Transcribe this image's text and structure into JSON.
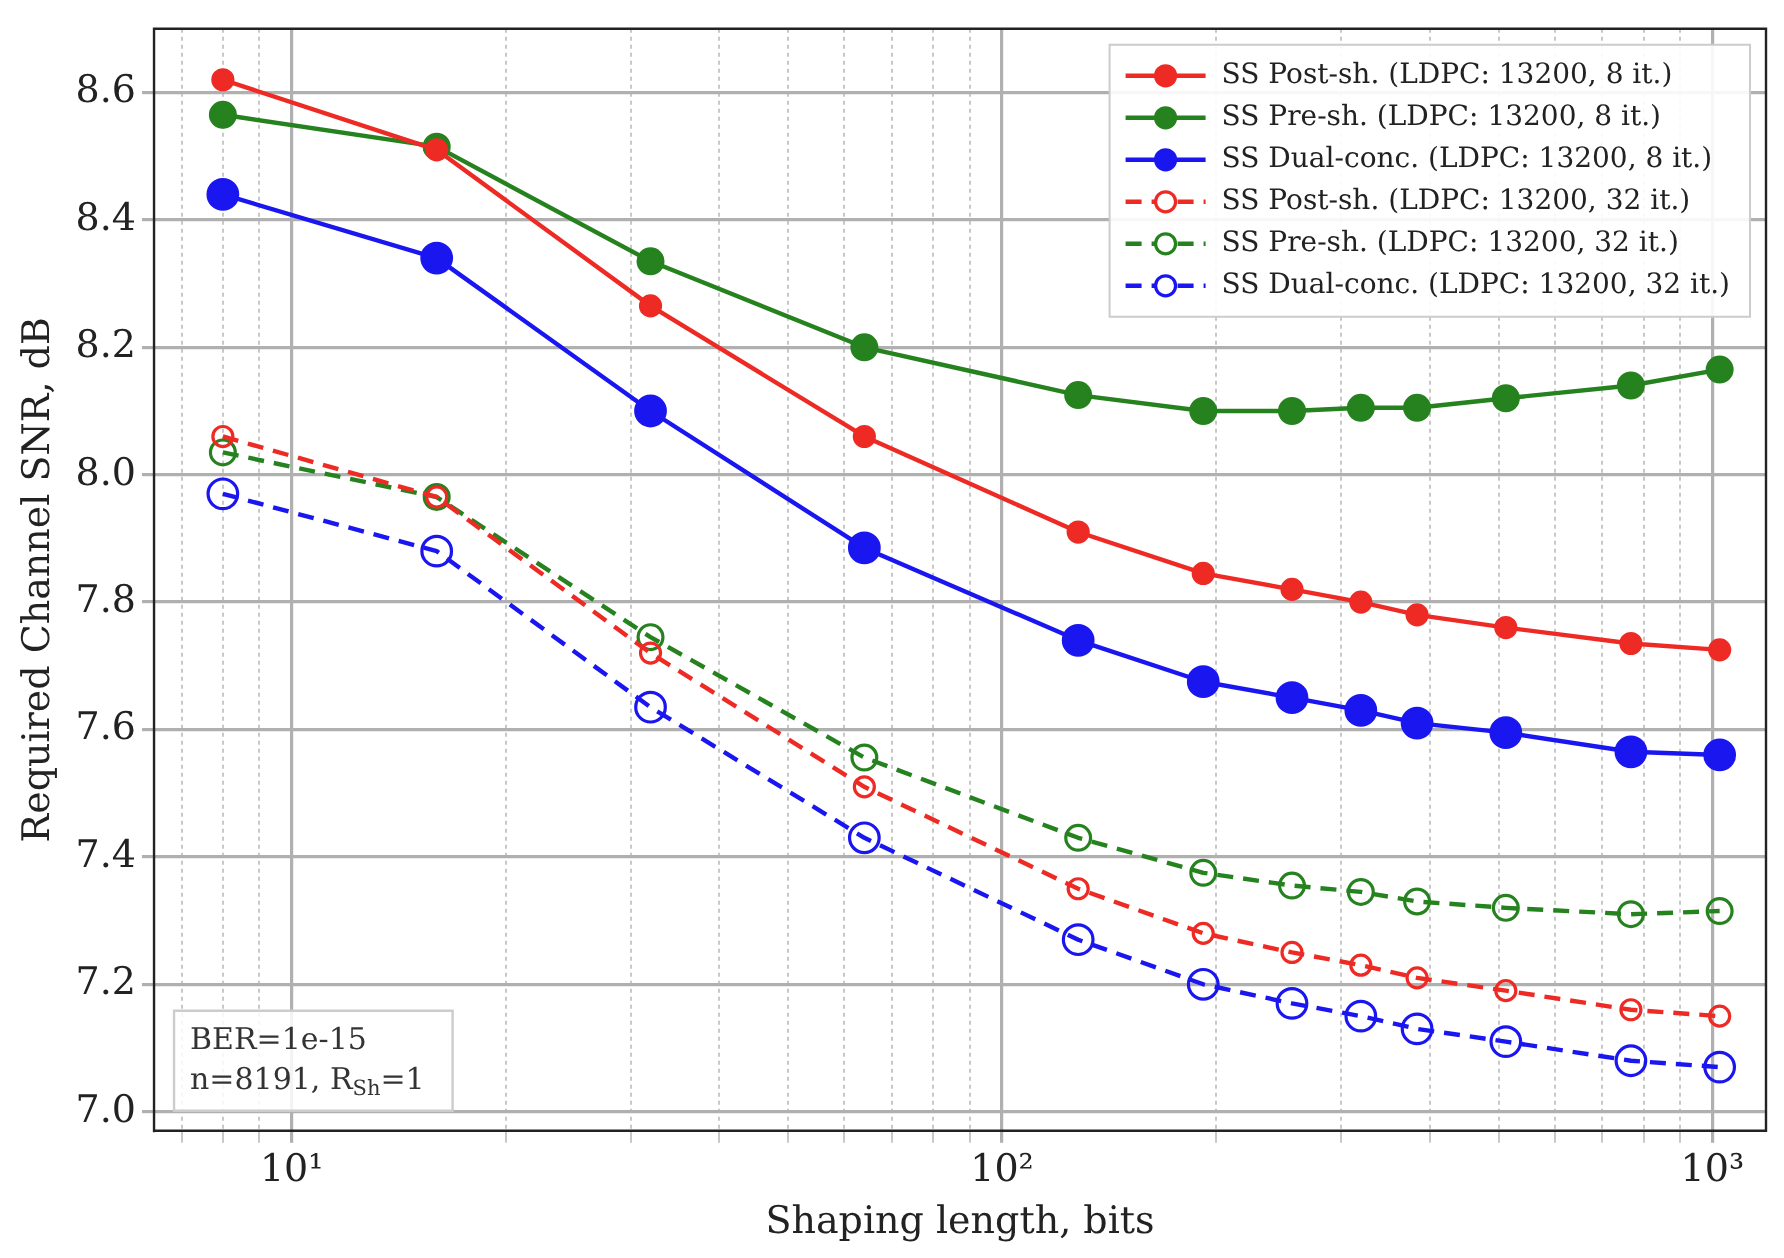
{
  "chart_data": {
    "type": "line",
    "xlabel": "Shaping length, bits",
    "ylabel": "Required Channel SNR, dB",
    "log": "x",
    "grid": true,
    "legend": "top right",
    "marker": "circle",
    "x": [
      8,
      16,
      32,
      64,
      128,
      192,
      256,
      320,
      384,
      512,
      768,
      1024
    ],
    "xlim": [
      6.4,
      1190
    ],
    "ylim": [
      6.97,
      8.7
    ],
    "xticks": [
      {
        "value": 7,
        "label": null
      },
      {
        "value": 8,
        "label": null
      },
      {
        "value": 9,
        "label": null
      },
      {
        "value": 10,
        "label": "10¹"
      },
      {
        "value": 20,
        "label": null
      },
      {
        "value": 30,
        "label": null
      },
      {
        "value": 40,
        "label": null
      },
      {
        "value": 50,
        "label": null
      },
      {
        "value": 60,
        "label": null
      },
      {
        "value": 70,
        "label": null
      },
      {
        "value": 80,
        "label": null
      },
      {
        "value": 90,
        "label": null
      },
      {
        "value": 100,
        "label": "10²"
      },
      {
        "value": 200,
        "label": null
      },
      {
        "value": 300,
        "label": null
      },
      {
        "value": 400,
        "label": null
      },
      {
        "value": 500,
        "label": null
      },
      {
        "value": 600,
        "label": null
      },
      {
        "value": 700,
        "label": null
      },
      {
        "value": 800,
        "label": null
      },
      {
        "value": 900,
        "label": null
      },
      {
        "value": 1000,
        "label": "10³"
      }
    ],
    "yticks": [
      {
        "value": 7,
        "label": "7.0"
      },
      7.2,
      7.4,
      7.6,
      7.8,
      {
        "value": 8,
        "label": "8.0"
      },
      8.2,
      8.4,
      8.6
    ],
    "annotations": [
      "BER=1e-15",
      "n=8191, R$_{Sh}$=1"
    ],
    "series": [
      {
        "name": "SS Post-sh. (LDPC: 13200, 8 it.)",
        "color": "#ee2a24",
        "line_style": "solid",
        "values": [
          8.62,
          8.51,
          8.265,
          8.06,
          7.91,
          7.845,
          7.82,
          7.8,
          7.78,
          7.76,
          7.735,
          7.725
        ]
      },
      {
        "name": "SS Pre-sh. (LDPC: 13200, 8 it.)",
        "color": "#25821e",
        "line_style": "solid",
        "values": [
          8.565,
          8.515,
          8.335,
          8.2,
          8.125,
          8.1,
          8.1,
          8.105,
          8.105,
          8.12,
          8.14,
          8.165
        ]
      },
      {
        "name": "SS Dual-conc. (LDPC: 13200, 8 it.)",
        "color": "#1a16f0",
        "line_style": "solid",
        "values": [
          8.44,
          8.34,
          8.1,
          7.885,
          7.74,
          7.675,
          7.65,
          7.63,
          7.61,
          7.595,
          7.565,
          7.56
        ]
      },
      {
        "name": "SS Post-sh. (LDPC: 13200, 32 it.)",
        "color": "#ee2a24",
        "line_style": "dashed",
        "values": [
          8.06,
          7.965,
          7.72,
          7.51,
          7.35,
          7.28,
          7.25,
          7.23,
          7.21,
          7.19,
          7.16,
          7.15
        ]
      },
      {
        "name": "SS Pre-sh. (LDPC: 13200, 32 it.)",
        "color": "#25821e",
        "line_style": "dashed",
        "values": [
          8.035,
          7.965,
          7.745,
          7.556,
          7.43,
          7.375,
          7.355,
          7.345,
          7.33,
          7.32,
          7.31,
          7.315
        ]
      },
      {
        "name": "SS Dual-conc. (LDPC: 13200, 32 it.)",
        "color": "#1a16f0",
        "line_style": "dashed",
        "values": [
          7.97,
          7.88,
          7.635,
          7.43,
          7.27,
          7.2,
          7.17,
          7.15,
          7.13,
          7.11,
          7.08,
          7.07
        ]
      }
    ]
  }
}
